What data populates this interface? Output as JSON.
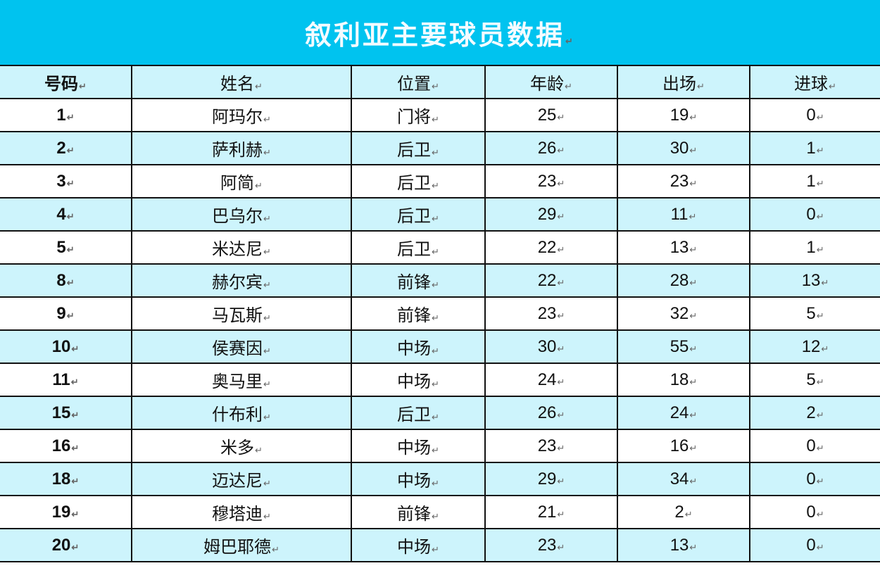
{
  "title": "叙利亚主要球员数据",
  "colors": {
    "banner": "#00c3ef",
    "alt_row": "#cdf4fc"
  },
  "columns": [
    "号码",
    "姓名",
    "位置",
    "年龄",
    "出场",
    "进球"
  ],
  "rows": [
    [
      "1",
      "阿玛尔",
      "门将",
      "25",
      "19",
      "0"
    ],
    [
      "2",
      "萨利赫",
      "后卫",
      "26",
      "30",
      "1"
    ],
    [
      "3",
      "阿简",
      "后卫",
      "23",
      "23",
      "1"
    ],
    [
      "4",
      "巴乌尔",
      "后卫",
      "29",
      "11",
      "0"
    ],
    [
      "5",
      "米达尼",
      "后卫",
      "22",
      "13",
      "1"
    ],
    [
      "8",
      "赫尔宾",
      "前锋",
      "22",
      "28",
      "13"
    ],
    [
      "9",
      "马瓦斯",
      "前锋",
      "23",
      "32",
      "5"
    ],
    [
      "10",
      "侯赛因",
      "中场",
      "30",
      "55",
      "12"
    ],
    [
      "11",
      "奥马里",
      "中场",
      "24",
      "18",
      "5"
    ],
    [
      "15",
      "什布利",
      "后卫",
      "26",
      "24",
      "2"
    ],
    [
      "16",
      "米多",
      "中场",
      "23",
      "16",
      "0"
    ],
    [
      "18",
      "迈达尼",
      "中场",
      "29",
      "34",
      "0"
    ],
    [
      "19",
      "穆塔迪",
      "前锋",
      "21",
      "2",
      "0"
    ],
    [
      "20",
      "姆巴耶德",
      "中场",
      "23",
      "13",
      "0"
    ]
  ]
}
